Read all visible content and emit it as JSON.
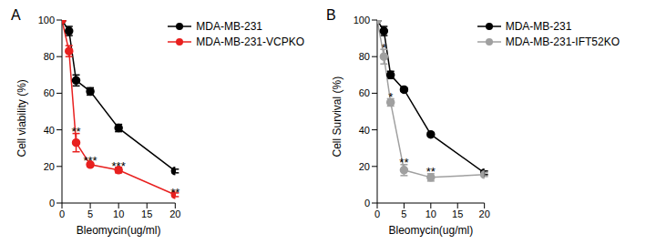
{
  "chart_data": [
    {
      "type": "line",
      "title": "A",
      "x_label": "Bleomycin(ug/ml)",
      "y_label": "Cell viability (%)",
      "x": [
        0,
        1.25,
        2.5,
        5,
        10,
        20
      ],
      "series": [
        {
          "name": "MDA-MB-231",
          "color": "#000000",
          "values": [
            100,
            94,
            67,
            61,
            41,
            17.5
          ],
          "errors": [
            0,
            2.5,
            3,
            2,
            2,
            1
          ]
        },
        {
          "name": "MDA-MB-231-VCPKO",
          "color": "#e8201f",
          "values": [
            100,
            83,
            33,
            21,
            18,
            4.5
          ],
          "errors": [
            0,
            3,
            5,
            1,
            1.5,
            1
          ]
        }
      ],
      "annotations": [
        {
          "x": 2.5,
          "y": 39,
          "text": "**"
        },
        {
          "x": 5,
          "y": 23,
          "text": "***"
        },
        {
          "x": 10,
          "y": 20,
          "text": "***"
        },
        {
          "x": 20,
          "y": 6,
          "text": "**"
        }
      ],
      "xlim": [
        0,
        20
      ],
      "ylim": [
        0,
        100
      ],
      "xticks": [
        0,
        5,
        10,
        15,
        20
      ],
      "yticks": [
        0,
        20,
        40,
        60,
        80,
        100
      ],
      "marker": "circle",
      "legend": "upper right"
    },
    {
      "type": "line",
      "title": "B",
      "x_label": "Bleomycin(ug/ml)",
      "y_label": "Cell  Survival (%)",
      "x": [
        0,
        1.25,
        2.5,
        5,
        10,
        20
      ],
      "series": [
        {
          "name": "MDA-MB-231",
          "color": "#000000",
          "values": [
            100,
            94,
            70,
            62,
            37.5,
            16.5
          ],
          "errors": [
            0,
            2.5,
            2,
            1,
            1,
            1
          ]
        },
        {
          "name": "MDA-MB-231-IFT52KO",
          "color": "#a0a0a0",
          "values": [
            100,
            80,
            55,
            18,
            14,
            15.5
          ],
          "errors": [
            0,
            4,
            2,
            3,
            2,
            1
          ]
        }
      ],
      "annotations": [
        {
          "x": 1.25,
          "y": 85,
          "text": "*"
        },
        {
          "x": 2.5,
          "y": 58,
          "text": "*"
        },
        {
          "x": 5,
          "y": 22,
          "text": "**"
        },
        {
          "x": 10,
          "y": 17,
          "text": "**"
        }
      ],
      "xlim": [
        0,
        20
      ],
      "ylim": [
        0,
        100
      ],
      "xticks": [
        0,
        5,
        10,
        15,
        20
      ],
      "yticks": [
        0,
        20,
        40,
        60,
        80,
        100
      ],
      "marker": "circle",
      "legend": "upper right"
    }
  ]
}
